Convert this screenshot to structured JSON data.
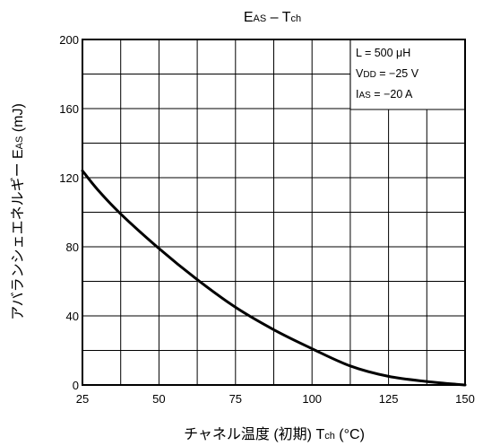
{
  "chart_data": {
    "type": "line",
    "title": {
      "main": "E",
      "sub": "AS",
      "sep": " – T",
      "sub2": "ch"
    },
    "xlabel": {
      "main": "チャネル温度 (初期)   T",
      "sub": "ch",
      "unit": "   (°C)"
    },
    "ylabel": {
      "main": "アバランシェエネルギー   E",
      "sub": "AS",
      "unit": "   (mJ)"
    },
    "xlim": [
      25,
      150
    ],
    "ylim": [
      0,
      200
    ],
    "x_ticks": [
      "25",
      "50",
      "75",
      "100",
      "125",
      "150"
    ],
    "y_ticks": [
      "0",
      "40",
      "80",
      "120",
      "160",
      "200"
    ],
    "x_gridlines": [
      25,
      37.5,
      50,
      62.5,
      75,
      87.5,
      100,
      112.5,
      125,
      137.5,
      150
    ],
    "y_gridlines": [
      0,
      20,
      40,
      60,
      80,
      100,
      120,
      140,
      160,
      180,
      200
    ],
    "grid": true,
    "series": [
      {
        "x": [
          25,
          30,
          37.5,
          50,
          62.5,
          75,
          87.5,
          100,
          112.5,
          125,
          137.5,
          150
        ],
        "y": [
          124,
          113,
          99,
          79,
          61,
          45,
          32,
          21,
          11,
          5,
          2,
          0
        ]
      }
    ],
    "annotations": {
      "line1": "L = 500 μH",
      "line2": {
        "main": "V",
        "sub": "DD",
        "rest": " = −25 V"
      },
      "line3": {
        "main": "I",
        "sub": "AS",
        "rest": " = −20 A"
      },
      "placement": "top-right"
    }
  }
}
